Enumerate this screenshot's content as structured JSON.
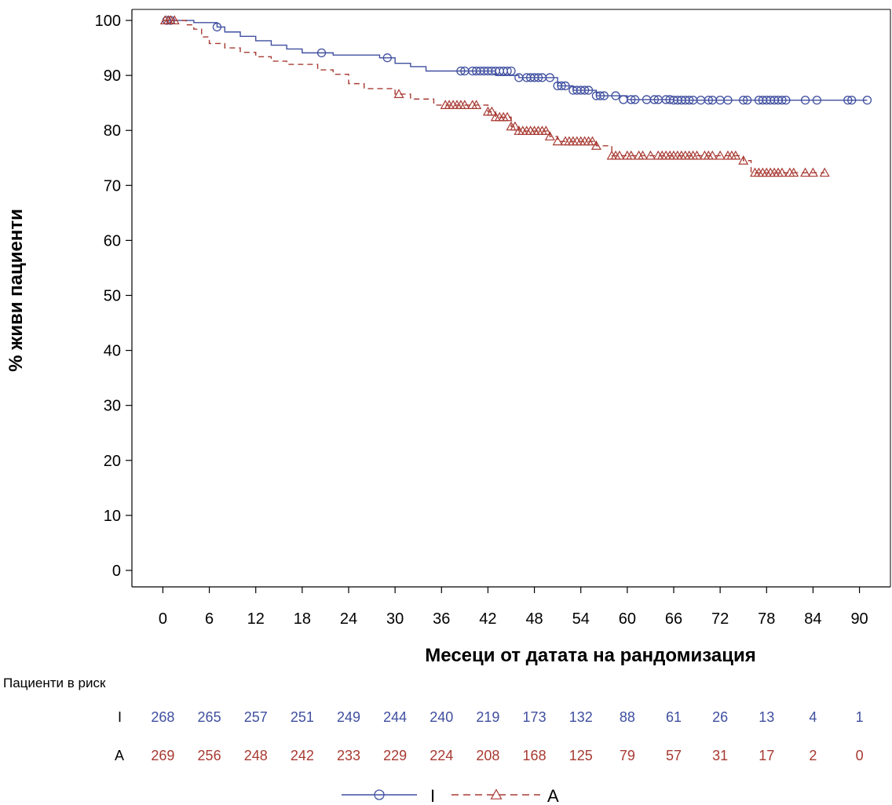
{
  "chart_data": {
    "type": "line",
    "subtype": "kaplan-meier",
    "title": "",
    "xlabel": "Месеци от датата на рандомизация",
    "ylabel": "% живи пациенти",
    "xlim": [
      -4,
      94
    ],
    "ylim": [
      -3,
      102
    ],
    "xticks": [
      "0",
      "6",
      "12",
      "18",
      "24",
      "30",
      "36",
      "42",
      "48",
      "54",
      "60",
      "66",
      "72",
      "78",
      "84",
      "90"
    ],
    "yticks": [
      "0",
      "10",
      "20",
      "30",
      "40",
      "50",
      "60",
      "70",
      "80",
      "90",
      "100"
    ],
    "grid": false,
    "legend_position": "bottom",
    "series": [
      {
        "name": "I",
        "color": "#3f4f9f",
        "line_style": "solid",
        "marker": "circle",
        "steps": [
          [
            0,
            100
          ],
          [
            4,
            99.6
          ],
          [
            7,
            98.8
          ],
          [
            8,
            97.9
          ],
          [
            10,
            97.1
          ],
          [
            12,
            96.3
          ],
          [
            14,
            95.5
          ],
          [
            16,
            94.8
          ],
          [
            18,
            94.1
          ],
          [
            22,
            93.7
          ],
          [
            28,
            93.2
          ],
          [
            30,
            92.2
          ],
          [
            32,
            91.6
          ],
          [
            34,
            90.8
          ],
          [
            43,
            90.0
          ],
          [
            46,
            89.6
          ],
          [
            51,
            88.1
          ],
          [
            53,
            87.3
          ],
          [
            56,
            86.3
          ],
          [
            60,
            85.6
          ],
          [
            66,
            85.5
          ]
        ],
        "censored": [
          [
            0.5,
            100
          ],
          [
            1,
            100
          ],
          [
            7,
            98.8
          ],
          [
            20.5,
            94.1
          ],
          [
            29,
            93.2
          ],
          [
            38.5,
            90.8
          ],
          [
            39,
            90.8
          ],
          [
            40,
            90.8
          ],
          [
            40.5,
            90.8
          ],
          [
            41,
            90.8
          ],
          [
            41.5,
            90.8
          ],
          [
            42,
            90.8
          ],
          [
            42.5,
            90.8
          ],
          [
            43,
            90.8
          ],
          [
            43.5,
            90.8
          ],
          [
            44,
            90.8
          ],
          [
            44.5,
            90.8
          ],
          [
            45,
            90.8
          ],
          [
            46,
            89.6
          ],
          [
            47,
            89.6
          ],
          [
            47.5,
            89.6
          ],
          [
            48,
            89.6
          ],
          [
            48.5,
            89.6
          ],
          [
            49,
            89.6
          ],
          [
            50,
            89.6
          ],
          [
            51,
            88.1
          ],
          [
            51.5,
            88.1
          ],
          [
            52,
            88.1
          ],
          [
            53,
            87.3
          ],
          [
            53.5,
            87.3
          ],
          [
            54,
            87.3
          ],
          [
            54.5,
            87.3
          ],
          [
            55,
            87.3
          ],
          [
            56,
            86.3
          ],
          [
            56.5,
            86.3
          ],
          [
            57,
            86.3
          ],
          [
            58.5,
            86.3
          ],
          [
            59.5,
            85.6
          ],
          [
            60.5,
            85.6
          ],
          [
            61,
            85.6
          ],
          [
            62.5,
            85.6
          ],
          [
            63.5,
            85.6
          ],
          [
            64,
            85.6
          ],
          [
            65,
            85.6
          ],
          [
            65.5,
            85.6
          ],
          [
            66,
            85.5
          ],
          [
            66.5,
            85.5
          ],
          [
            67,
            85.5
          ],
          [
            67.5,
            85.5
          ],
          [
            68,
            85.5
          ],
          [
            68.5,
            85.5
          ],
          [
            69.5,
            85.5
          ],
          [
            70.5,
            85.5
          ],
          [
            71,
            85.5
          ],
          [
            72,
            85.5
          ],
          [
            73,
            85.5
          ],
          [
            75,
            85.5
          ],
          [
            75.5,
            85.5
          ],
          [
            77,
            85.5
          ],
          [
            77.5,
            85.5
          ],
          [
            78,
            85.5
          ],
          [
            78.5,
            85.5
          ],
          [
            79,
            85.5
          ],
          [
            79.5,
            85.5
          ],
          [
            80,
            85.5
          ],
          [
            80.5,
            85.5
          ],
          [
            83,
            85.5
          ],
          [
            84.5,
            85.5
          ],
          [
            88.5,
            85.5
          ],
          [
            89,
            85.5
          ],
          [
            91,
            85.5
          ]
        ],
        "at_risk": [
          268,
          265,
          257,
          251,
          249,
          244,
          240,
          219,
          173,
          132,
          88,
          61,
          26,
          13,
          4,
          1
        ]
      },
      {
        "name": "A",
        "color": "#a83a33",
        "line_style": "dashed",
        "marker": "triangle",
        "steps": [
          [
            0,
            100
          ],
          [
            3,
            99.2
          ],
          [
            4,
            98.4
          ],
          [
            5,
            97.0
          ],
          [
            6,
            95.8
          ],
          [
            8,
            95.0
          ],
          [
            10,
            94.2
          ],
          [
            12,
            93.4
          ],
          [
            14,
            92.6
          ],
          [
            16,
            92.0
          ],
          [
            20,
            91.0
          ],
          [
            22,
            90.2
          ],
          [
            24,
            88.5
          ],
          [
            26,
            87.6
          ],
          [
            30,
            86.6
          ],
          [
            32,
            85.7
          ],
          [
            35,
            84.6
          ],
          [
            42,
            83.4
          ],
          [
            43,
            82.4
          ],
          [
            45,
            80.7
          ],
          [
            46,
            79.9
          ],
          [
            50,
            78.9
          ],
          [
            51,
            78.0
          ],
          [
            56,
            77.2
          ],
          [
            58,
            75.4
          ],
          [
            75,
            74.5
          ],
          [
            76,
            72.3
          ]
        ],
        "censored": [
          [
            0.3,
            100
          ],
          [
            0.7,
            100
          ],
          [
            1,
            100
          ],
          [
            1.5,
            100
          ],
          [
            30.5,
            86.6
          ],
          [
            36.5,
            84.6
          ],
          [
            37,
            84.6
          ],
          [
            37.5,
            84.6
          ],
          [
            38,
            84.6
          ],
          [
            38.5,
            84.6
          ],
          [
            39,
            84.6
          ],
          [
            40,
            84.6
          ],
          [
            40.5,
            84.6
          ],
          [
            42,
            83.4
          ],
          [
            42.5,
            83.4
          ],
          [
            43,
            82.4
          ],
          [
            43.5,
            82.4
          ],
          [
            44,
            82.4
          ],
          [
            44.5,
            82.4
          ],
          [
            45,
            80.7
          ],
          [
            45.5,
            80.7
          ],
          [
            46,
            79.9
          ],
          [
            46.5,
            79.9
          ],
          [
            47,
            79.9
          ],
          [
            47.5,
            79.9
          ],
          [
            48,
            79.9
          ],
          [
            48.5,
            79.9
          ],
          [
            49,
            79.9
          ],
          [
            49.5,
            79.9
          ],
          [
            50,
            78.9
          ],
          [
            51,
            78.0
          ],
          [
            52,
            78.0
          ],
          [
            52.5,
            78.0
          ],
          [
            53,
            78.0
          ],
          [
            53.5,
            78.0
          ],
          [
            54,
            78.0
          ],
          [
            54.5,
            78.0
          ],
          [
            55,
            78.0
          ],
          [
            55.5,
            78.0
          ],
          [
            56,
            77.2
          ],
          [
            58,
            75.4
          ],
          [
            58.5,
            75.4
          ],
          [
            59,
            75.4
          ],
          [
            60,
            75.4
          ],
          [
            60.5,
            75.4
          ],
          [
            61.5,
            75.4
          ],
          [
            62,
            75.4
          ],
          [
            63,
            75.4
          ],
          [
            64,
            75.4
          ],
          [
            64.5,
            75.4
          ],
          [
            65,
            75.4
          ],
          [
            65.5,
            75.4
          ],
          [
            66,
            75.4
          ],
          [
            66.5,
            75.4
          ],
          [
            67,
            75.4
          ],
          [
            67.5,
            75.4
          ],
          [
            68,
            75.4
          ],
          [
            68.5,
            75.4
          ],
          [
            69,
            75.4
          ],
          [
            70,
            75.4
          ],
          [
            70.5,
            75.4
          ],
          [
            71,
            75.4
          ],
          [
            72,
            75.4
          ],
          [
            73,
            75.4
          ],
          [
            73.5,
            75.4
          ],
          [
            74,
            75.4
          ],
          [
            75,
            74.5
          ],
          [
            76.5,
            72.3
          ],
          [
            77,
            72.3
          ],
          [
            77.5,
            72.3
          ],
          [
            78,
            72.3
          ],
          [
            78.5,
            72.3
          ],
          [
            79,
            72.3
          ],
          [
            79.5,
            72.3
          ],
          [
            80,
            72.3
          ],
          [
            81,
            72.3
          ],
          [
            81.5,
            72.3
          ],
          [
            83,
            72.3
          ],
          [
            84,
            72.3
          ],
          [
            85.5,
            72.3
          ]
        ],
        "at_risk": [
          269,
          256,
          248,
          242,
          233,
          229,
          224,
          208,
          168,
          125,
          79,
          57,
          31,
          17,
          2,
          0
        ]
      }
    ],
    "at_risk_table": {
      "title": "Пациенти в риск",
      "row_labels": [
        "I",
        "A"
      ]
    }
  }
}
